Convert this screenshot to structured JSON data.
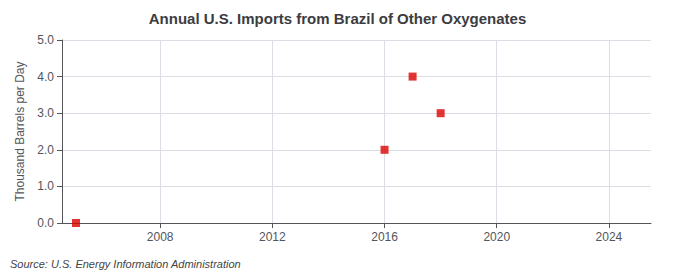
{
  "chart_data": {
    "type": "scatter",
    "title": "Annual U.S. Imports from Brazil of Other Oxygenates",
    "ylabel": "Thousand Barrels per Day",
    "source": "Source: U.S. Energy Information Administration",
    "x": [
      2005,
      2016,
      2017,
      2018
    ],
    "values": [
      0.0,
      2.0,
      4.0,
      3.0
    ],
    "color": "#dd0000",
    "marker": "square",
    "xlim": [
      2004.5,
      2025.5
    ],
    "xticks": [
      2008,
      2012,
      2016,
      2020,
      2024
    ],
    "ylim": [
      0.0,
      5.0
    ],
    "yticks": [
      {
        "value": 0.0,
        "label": "0.0"
      },
      {
        "value": 1.0,
        "label": "1.0"
      },
      {
        "value": 2.0,
        "label": "2.0"
      },
      {
        "value": 3.0,
        "label": "3.0"
      },
      {
        "value": 4.0,
        "label": "4.0"
      },
      {
        "value": 5.0,
        "label": "5.0"
      }
    ],
    "grid": true
  }
}
